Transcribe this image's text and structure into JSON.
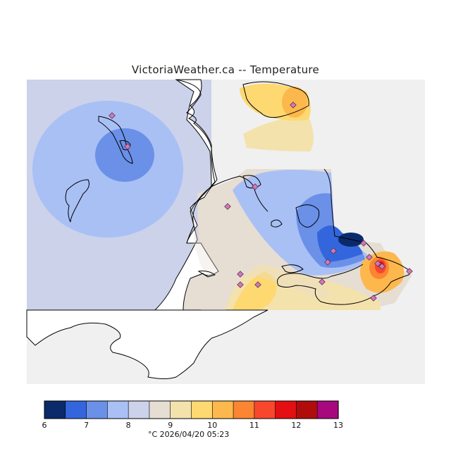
{
  "title": "VictoriaWeather.ca -- Temperature",
  "timestamp": "°C  2026/04/20 05:23",
  "legend": {
    "ticks": [
      "6",
      "7",
      "8",
      "9",
      "10",
      "11",
      "12",
      "13"
    ],
    "colors": [
      "#0b2a6b",
      "#3366dd",
      "#6a90e8",
      "#a9c0f5",
      "#cbd2ea",
      "#e6ddd3",
      "#f4e2ad",
      "#fed972",
      "#fdb84d",
      "#fb8532",
      "#f9472d",
      "#e30f12",
      "#b00c0c",
      "#a8087e"
    ]
  },
  "map_colors": {
    "land": "#ffffff",
    "out_of_domain": "#f0f0f0",
    "station_marker": "#e070c0",
    "coastline": "#000000"
  }
}
